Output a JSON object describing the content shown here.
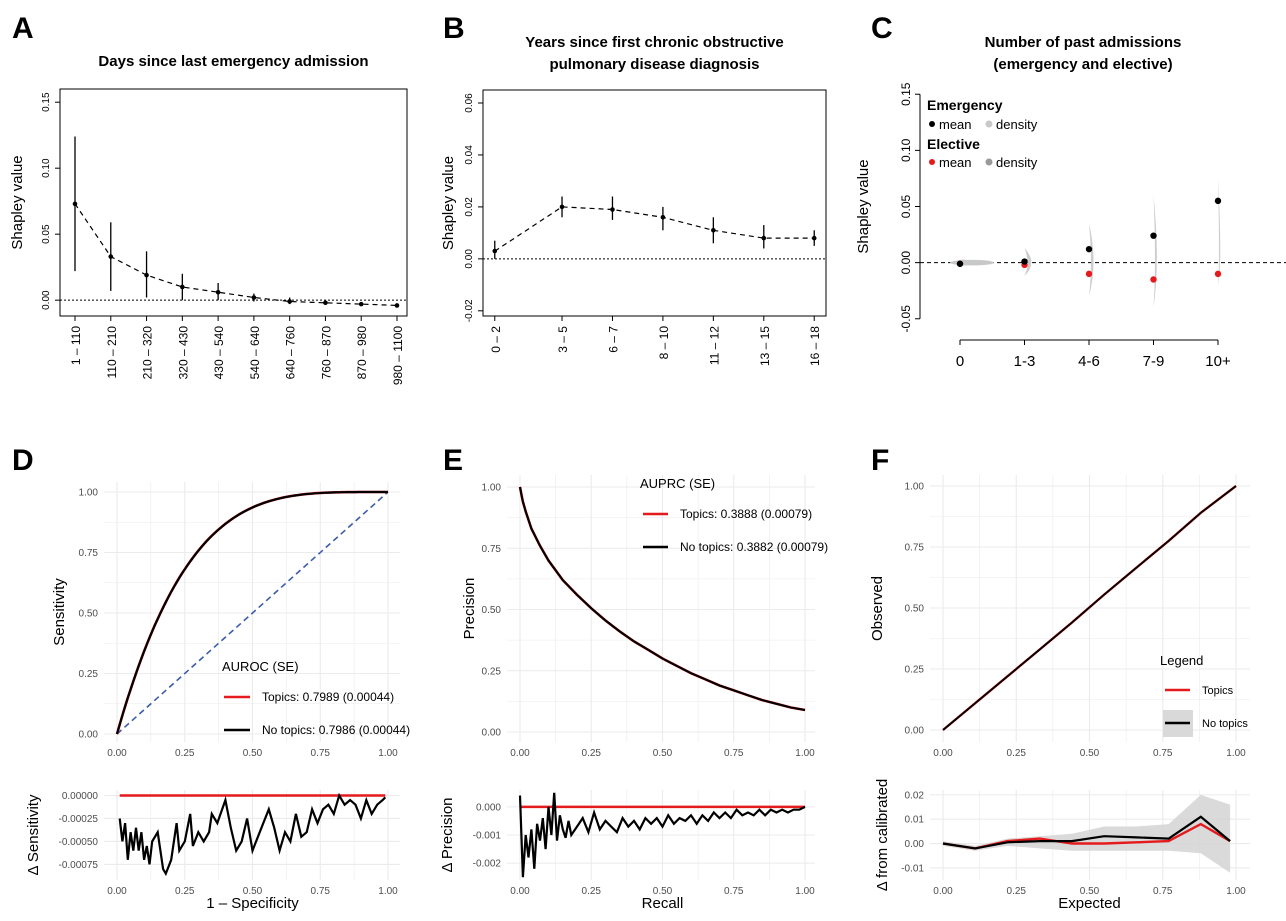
{
  "colors": {
    "topics": "#e41a1c",
    "no_topics": "#000000",
    "diagonal": "#3b5bab",
    "grid": "#ebebeb",
    "density": "#c8c8c8",
    "elective_mean": "#e41a1c",
    "emergency_mean": "#000000"
  },
  "panel_labels": [
    "A",
    "B",
    "C",
    "D",
    "E",
    "F"
  ],
  "chart_data": [
    {
      "panel": "A",
      "type": "scatter",
      "title": "Days since last emergency admission",
      "xlabel": "",
      "ylabel": "Shapley value",
      "categories": [
        "1 – 110",
        "110 – 210",
        "210 – 320",
        "320 – 430",
        "430 – 540",
        "540 – 640",
        "640 – 760",
        "760 – 870",
        "870 – 980",
        "980 – 1100"
      ],
      "values": [
        0.073,
        0.033,
        0.019,
        0.01,
        0.006,
        0.002,
        -0.001,
        -0.002,
        -0.003,
        -0.004
      ],
      "err_low": [
        0.022,
        0.007,
        0.002,
        0.0,
        0.0,
        -0.001,
        -0.003,
        -0.003,
        -0.004,
        -0.005
      ],
      "err_high": [
        0.124,
        0.059,
        0.037,
        0.02,
        0.013,
        0.005,
        0.002,
        -0.001,
        -0.002,
        -0.003
      ],
      "yticks": [
        0.0,
        0.05,
        0.1,
        0.15
      ],
      "ytick_labels": [
        "0.00",
        "0.05",
        "0.10",
        "0.15"
      ],
      "ylim": [
        -0.012,
        0.16
      ],
      "reference_line": 0,
      "grid": false
    },
    {
      "panel": "B",
      "type": "scatter",
      "title": "Years since first chronic obstructive pulmonary disease diagnosis",
      "title_lines": [
        "Years since first chronic obstructive",
        "pulmonary disease diagnosis"
      ],
      "xlabel": "",
      "ylabel": "Shapley value",
      "categories": [
        "0 – 2",
        "3 – 5",
        "6 – 7",
        "8 – 10",
        "11 – 12",
        "13 – 15",
        "16 – 18"
      ],
      "x": [
        1,
        5,
        8,
        11,
        14,
        17,
        20
      ],
      "xlim": [
        0.3,
        20.7
      ],
      "values": [
        0.003,
        0.02,
        0.019,
        0.016,
        0.011,
        0.008,
        0.008
      ],
      "err_low": [
        0.0,
        0.016,
        0.015,
        0.011,
        0.006,
        0.004,
        0.005
      ],
      "err_high": [
        0.007,
        0.024,
        0.024,
        0.02,
        0.016,
        0.013,
        0.011
      ],
      "yticks": [
        -0.02,
        0.0,
        0.02,
        0.04,
        0.06
      ],
      "ytick_labels": [
        "-0.02",
        "0.00",
        "0.02",
        "0.04",
        "0.06"
      ],
      "ylim": [
        -0.022,
        0.065
      ],
      "reference_line": 0,
      "grid": false
    },
    {
      "panel": "C",
      "type": "scatter",
      "title": "Number of past admissions (emergency and elective)",
      "title_lines": [
        "Number of past admissions",
        "(emergency and elective)"
      ],
      "xlabel": "",
      "ylabel": "Shapley value",
      "categories": [
        "0",
        "1-3",
        "4-6",
        "7-9",
        "10+"
      ],
      "series": [
        {
          "name": "Emergency",
          "values": [
            -0.001,
            0.001,
            0.012,
            0.024,
            0.055
          ]
        },
        {
          "name": "Elective",
          "values": [
            -0.001,
            -0.002,
            -0.01,
            -0.015,
            -0.01
          ]
        }
      ],
      "legend_groups": [
        {
          "title": "Emergency",
          "mean": "mean",
          "density": "density"
        },
        {
          "title": "Elective",
          "mean": "mean",
          "density": "density"
        }
      ],
      "density_spread": [
        {
          "half_width": 0.016,
          "y_min": -0.003,
          "y_max": 0.003
        },
        {
          "half_width": 0.006,
          "y_min": -0.012,
          "y_max": 0.013
        },
        {
          "half_width": 0.004,
          "y_min": -0.03,
          "y_max": 0.035
        },
        {
          "half_width": 0.003,
          "y_min": -0.04,
          "y_max": 0.06
        },
        {
          "half_width": 0.002,
          "y_min": -0.02,
          "y_max": 0.075
        }
      ],
      "yticks": [
        -0.05,
        0.0,
        0.05,
        0.1,
        0.15
      ],
      "ytick_labels": [
        "-0.05",
        "0.00",
        "0.05",
        "0.10",
        "0.15"
      ],
      "ylim": [
        -0.06,
        0.16
      ],
      "reference_line": 0,
      "legend_position": "top-left",
      "grid": false
    },
    {
      "panel": "D",
      "type": "line",
      "title": "",
      "ylabel": "Sensitivity",
      "xlabel": "1 – Specificity",
      "xlim": [
        0,
        1
      ],
      "ylim": [
        0,
        1
      ],
      "xticks": [
        "0.00",
        "0.25",
        "0.50",
        "0.75",
        "1.00"
      ],
      "yticks": [
        "0.00",
        "0.25",
        "0.50",
        "0.75",
        "1.00"
      ],
      "roc_auc": 0.7989,
      "legend_title": "AUROC (SE)",
      "series": [
        {
          "name": "Topics: 0.7989 (0.00044)",
          "auc": 0.7989
        },
        {
          "name": "No topics: 0.7986 (0.00044)",
          "auc": 0.7986
        }
      ],
      "diagonal": true,
      "legend_position": "bottom-right",
      "grid": true,
      "sub": {
        "ylabel": "Δ Sensitivity",
        "yticks": [
          "0.00000",
          "-0.00025",
          "-0.00050",
          "-0.00075"
        ],
        "ytick_values": [
          0,
          -0.00025,
          -0.0005,
          -0.00075
        ],
        "ylim": [
          -0.00092,
          6e-05
        ],
        "x": [
          0.01,
          0.02,
          0.03,
          0.04,
          0.05,
          0.06,
          0.07,
          0.08,
          0.09,
          0.1,
          0.11,
          0.12,
          0.13,
          0.15,
          0.17,
          0.18,
          0.2,
          0.22,
          0.23,
          0.25,
          0.27,
          0.28,
          0.3,
          0.32,
          0.34,
          0.35,
          0.37,
          0.4,
          0.42,
          0.44,
          0.46,
          0.48,
          0.5,
          0.52,
          0.54,
          0.56,
          0.58,
          0.6,
          0.62,
          0.64,
          0.66,
          0.68,
          0.7,
          0.72,
          0.74,
          0.76,
          0.78,
          0.8,
          0.82,
          0.84,
          0.86,
          0.88,
          0.9,
          0.92,
          0.94,
          0.96,
          0.98,
          0.99
        ],
        "values": [
          -0.00025,
          -0.0005,
          -0.0003,
          -0.0007,
          -0.0004,
          -0.0006,
          -0.00035,
          -0.0006,
          -0.0004,
          -0.0007,
          -0.00055,
          -0.00075,
          -0.0005,
          -0.0004,
          -0.0008,
          -0.00085,
          -0.0007,
          -0.0003,
          -0.0006,
          -0.0005,
          -0.0002,
          -0.00055,
          -0.0004,
          -0.0005,
          -0.0004,
          -0.0002,
          -0.0003,
          -5e-05,
          -0.00035,
          -0.0006,
          -0.0005,
          -0.00025,
          -0.0006,
          -0.00045,
          -0.0003,
          -0.00015,
          -0.00035,
          -0.0006,
          -0.0004,
          -0.0005,
          -0.0002,
          -0.00045,
          -0.0004,
          -0.00015,
          -0.0003,
          -0.00015,
          -0.0001,
          -0.0002,
          0.0,
          -0.0001,
          -5e-05,
          -0.0001,
          -0.00025,
          -5e-05,
          -0.0002,
          -0.0001,
          -5e-05,
          -2e-05
        ]
      }
    },
    {
      "panel": "E",
      "type": "line",
      "title": "",
      "ylabel": "Precision",
      "xlabel": "Recall",
      "xlim": [
        0,
        1
      ],
      "ylim": [
        0,
        1
      ],
      "xticks": [
        "0.00",
        "0.25",
        "0.50",
        "0.75",
        "1.00"
      ],
      "yticks": [
        "0.00",
        "0.25",
        "0.50",
        "0.75",
        "1.00"
      ],
      "legend_title": "AUPRC (SE)",
      "series": [
        {
          "name": "Topics: 0.3888 (0.00079)",
          "auprc": 0.3888
        },
        {
          "name": "No topics: 0.3882 (0.00079)",
          "auprc": 0.3882
        }
      ],
      "pr_curve": {
        "x": [
          0.0,
          0.005,
          0.01,
          0.02,
          0.04,
          0.07,
          0.1,
          0.15,
          0.2,
          0.25,
          0.3,
          0.35,
          0.4,
          0.45,
          0.5,
          0.55,
          0.6,
          0.65,
          0.7,
          0.75,
          0.8,
          0.85,
          0.9,
          0.95,
          1.0
        ],
        "y": [
          1.0,
          0.97,
          0.94,
          0.9,
          0.83,
          0.76,
          0.7,
          0.62,
          0.56,
          0.505,
          0.455,
          0.41,
          0.37,
          0.335,
          0.3,
          0.27,
          0.24,
          0.215,
          0.19,
          0.17,
          0.15,
          0.13,
          0.115,
          0.1,
          0.09
        ]
      },
      "legend_position": "top-right",
      "grid": true,
      "sub": {
        "ylabel": "Δ Precision",
        "yticks": [
          "0.000",
          "-0.001",
          "-0.002"
        ],
        "ytick_values": [
          0,
          -0.001,
          -0.002
        ],
        "ylim": [
          -0.0026,
          0.0006
        ],
        "x": [
          0.0,
          0.01,
          0.02,
          0.03,
          0.04,
          0.05,
          0.06,
          0.07,
          0.08,
          0.09,
          0.1,
          0.11,
          0.12,
          0.13,
          0.14,
          0.15,
          0.16,
          0.17,
          0.18,
          0.2,
          0.22,
          0.24,
          0.26,
          0.28,
          0.3,
          0.32,
          0.34,
          0.36,
          0.38,
          0.4,
          0.42,
          0.44,
          0.46,
          0.48,
          0.5,
          0.52,
          0.54,
          0.56,
          0.58,
          0.6,
          0.62,
          0.64,
          0.66,
          0.68,
          0.7,
          0.72,
          0.74,
          0.76,
          0.78,
          0.8,
          0.82,
          0.84,
          0.86,
          0.88,
          0.9,
          0.92,
          0.94,
          0.96,
          0.98,
          1.0
        ],
        "values": [
          0.0004,
          -0.0025,
          -0.001,
          -0.0018,
          -0.0008,
          -0.0022,
          -0.0006,
          -0.0012,
          -0.0004,
          -0.0015,
          0.0,
          -0.001,
          0.0005,
          -0.0012,
          -0.0003,
          -0.0008,
          -0.0011,
          -0.0005,
          -0.001,
          -0.0007,
          -0.0004,
          -0.0009,
          -0.0002,
          -0.0008,
          -0.0005,
          -0.0007,
          -0.0009,
          -0.0004,
          -0.0007,
          -0.0005,
          -0.0008,
          -0.0004,
          -0.0006,
          -0.0004,
          -0.0007,
          -0.0003,
          -0.0006,
          -0.0004,
          -0.0005,
          -0.0003,
          -0.0006,
          -0.0003,
          -0.0005,
          -0.0002,
          -0.0004,
          -0.0002,
          -0.0004,
          -0.0001,
          -0.0003,
          -0.0002,
          -0.0003,
          -0.0001,
          -0.0003,
          -0.0001,
          -0.0002,
          -0.0001,
          -0.0002,
          -0.0001,
          -0.0001,
          0.0
        ]
      }
    },
    {
      "panel": "F",
      "type": "line",
      "title": "",
      "ylabel": "Observed",
      "xlabel": "Expected",
      "xlim": [
        0,
        1
      ],
      "ylim": [
        0,
        1
      ],
      "xticks": [
        "0.00",
        "0.25",
        "0.50",
        "0.75",
        "1.00"
      ],
      "yticks": [
        "0.00",
        "0.25",
        "0.50",
        "0.75",
        "1.00"
      ],
      "legend_title": "Legend",
      "series": [
        {
          "name": "Topics",
          "x": [
            0.0,
            0.11,
            0.22,
            0.33,
            0.44,
            0.55,
            0.66,
            0.77,
            0.88,
            1.0
          ],
          "y": [
            0.0,
            0.11,
            0.22,
            0.33,
            0.44,
            0.555,
            0.665,
            0.775,
            0.89,
            1.0
          ]
        },
        {
          "name": "No topics",
          "x": [
            0.0,
            0.11,
            0.22,
            0.33,
            0.44,
            0.55,
            0.66,
            0.77,
            0.88,
            1.0
          ],
          "y": [
            0.0,
            0.11,
            0.22,
            0.33,
            0.44,
            0.555,
            0.665,
            0.775,
            0.89,
            1.0
          ]
        }
      ],
      "legend_position": "bottom-right",
      "grid": true,
      "sub": {
        "ylabel": "Δ from calibrated",
        "yticks": [
          "0.02",
          "0.01",
          "0.00",
          "-0.01"
        ],
        "ytick_values": [
          0.02,
          0.01,
          0.0,
          -0.01
        ],
        "ylim": [
          -0.015,
          0.022
        ],
        "x": [
          0.0,
          0.11,
          0.22,
          0.33,
          0.44,
          0.55,
          0.66,
          0.77,
          0.88,
          0.98
        ],
        "topics": [
          0.0,
          -0.002,
          0.001,
          0.002,
          0.0,
          0.0,
          0.0005,
          0.001,
          0.008,
          0.001
        ],
        "no_topics": [
          0.0,
          -0.002,
          0.0005,
          0.001,
          0.001,
          0.003,
          0.0025,
          0.002,
          0.011,
          0.001
        ],
        "band_low": [
          -0.001,
          -0.003,
          -0.001,
          -0.002,
          -0.003,
          -0.003,
          -0.003,
          -0.003,
          -0.004,
          -0.012
        ],
        "band_high": [
          0.001,
          -0.001,
          0.002,
          0.003,
          0.004,
          0.007,
          0.007,
          0.008,
          0.02,
          0.016
        ]
      }
    }
  ]
}
